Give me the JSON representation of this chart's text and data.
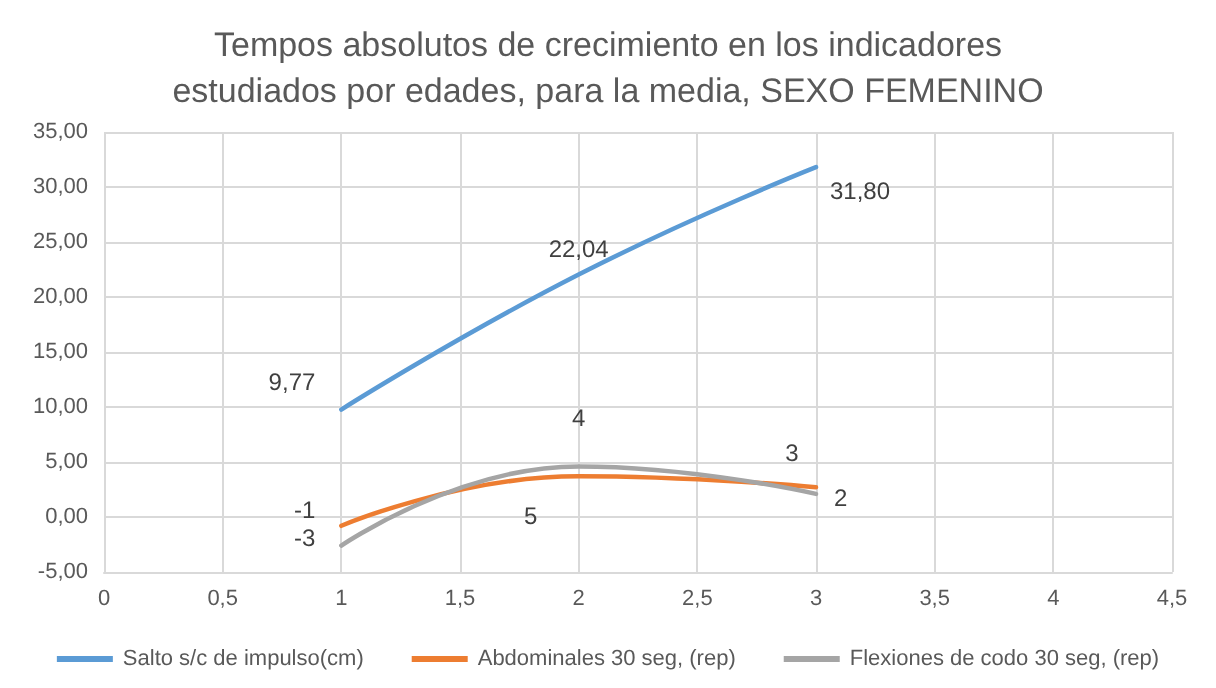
{
  "chart_data": {
    "type": "line",
    "title": "Tempos absolutos de crecimiento en los indicadores\nestudiados por edades, para la media, SEXO FEMENINO",
    "x": [
      1,
      2,
      3
    ],
    "series": [
      {
        "name": "Salto s/c de impulso(cm)",
        "color": "#5b9bd5",
        "values": [
          9.77,
          22.04,
          31.8
        ],
        "value_labels": [
          "9,77",
          "22,04",
          "31,80"
        ]
      },
      {
        "name": "Abdominales 30 seg, (rep)",
        "color": "#ed7d31",
        "values": [
          -0.8,
          3.7,
          2.7
        ],
        "value_labels": [
          "-1",
          "4",
          "3"
        ]
      },
      {
        "name": "Flexiones de codo 30 seg, (rep)",
        "color": "#a5a5a5",
        "values": [
          -2.6,
          4.6,
          2.1
        ],
        "value_labels": [
          "-3",
          "5",
          "2"
        ]
      }
    ],
    "xlim": [
      0,
      4.5
    ],
    "xticks": [
      0,
      {
        "value": 0.5,
        "label": "0,5"
      },
      1,
      {
        "value": 1.5,
        "label": "1,5"
      },
      2,
      {
        "value": 2.5,
        "label": "2,5"
      },
      3,
      {
        "value": 3.5,
        "label": "3,5"
      },
      4,
      {
        "value": 4.5,
        "label": "4,5"
      }
    ],
    "ylim": [
      -5,
      35
    ],
    "yticks": [
      {
        "value": -5,
        "label": "-5,00"
      },
      {
        "value": 0,
        "label": "0,00"
      },
      {
        "value": 5,
        "label": "5,00"
      },
      {
        "value": 10,
        "label": "10,00"
      },
      {
        "value": 15,
        "label": "15,00"
      },
      {
        "value": 20,
        "label": "20,00"
      },
      {
        "value": 25,
        "label": "25,00"
      },
      {
        "value": 30,
        "label": "30,00"
      },
      {
        "value": 35,
        "label": "35,00"
      }
    ],
    "grid": true,
    "legend": "bottom",
    "marker": "none",
    "line_style": "solid"
  }
}
